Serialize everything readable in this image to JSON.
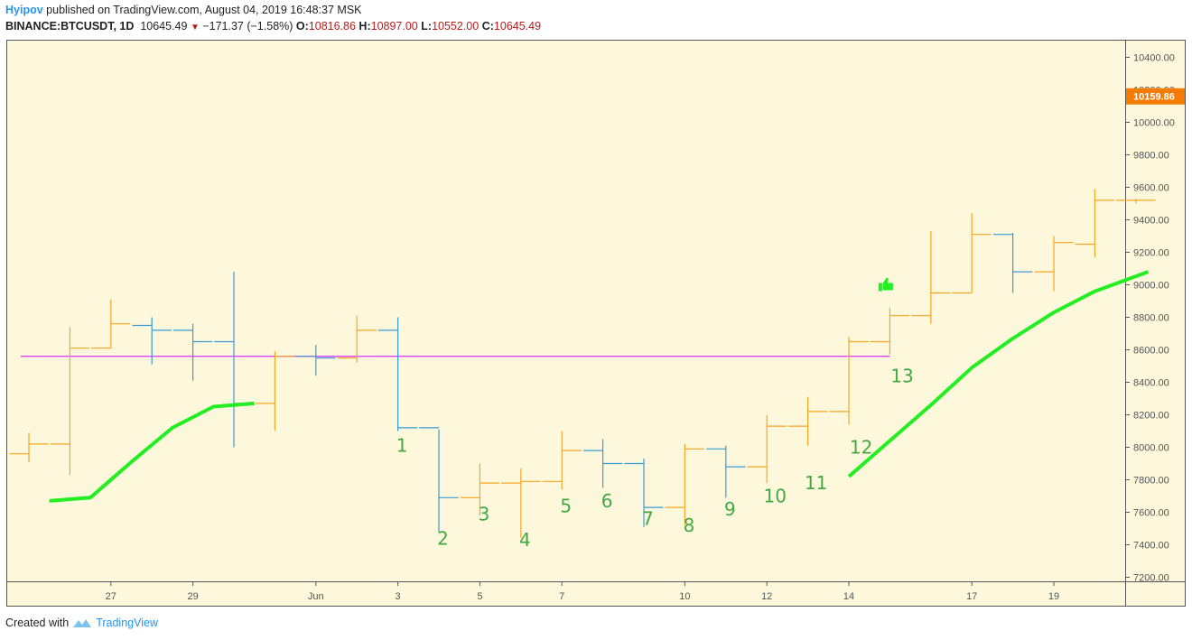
{
  "header": {
    "user": "Hyipov",
    "published": "published on TradingView.com, August 04, 2019 16:48:37 MSK",
    "symbol": "BINANCE:BTCUSDT, 1D",
    "last": "10645.49",
    "change": "−171.37 (−1.58%)",
    "open_label": "O:",
    "open": "10816.86",
    "high_label": "H:",
    "high": "10897.00",
    "low_label": "L:",
    "low": "10552.00",
    "close_label": "C:",
    "close": "10645.49"
  },
  "footer": {
    "created": "Created with",
    "brand": "TradingView"
  },
  "colors": {
    "background": "#fdf8dc",
    "up": "#f5a623",
    "down": "#3a9ad9",
    "ma": "#22ee22",
    "hline": "#e040fb",
    "labels": "#43a843",
    "price_tag": "#f57c00"
  },
  "chart_data": {
    "type": "ohlc",
    "ylim": [
      7200,
      10500
    ],
    "yticks": [
      7200,
      7400,
      7600,
      7800,
      8000,
      8200,
      8400,
      8600,
      8800,
      9000,
      9200,
      9400,
      9600,
      9800,
      10000,
      10200,
      10400
    ],
    "ytick_labels": [
      "7200.00",
      "7400.00",
      "7600.00",
      "7800.00",
      "8000.00",
      "8200.00",
      "8400.00",
      "8600.00",
      "8800.00",
      "9000.00",
      "9200.00",
      "9400.00",
      "9600.00",
      "9800.00",
      "10000.00",
      "10200.00",
      "10400.00"
    ],
    "current_price": "10159.86",
    "current_price_value": 10159.86,
    "xticks": [
      {
        "i": 2,
        "label": "27"
      },
      {
        "i": 4,
        "label": "29"
      },
      {
        "i": 7,
        "label": "Jun"
      },
      {
        "i": 9,
        "label": "3"
      },
      {
        "i": 11,
        "label": "5"
      },
      {
        "i": 13,
        "label": "7"
      },
      {
        "i": 16,
        "label": "10"
      },
      {
        "i": 18,
        "label": "12"
      },
      {
        "i": 20,
        "label": "14"
      },
      {
        "i": 23,
        "label": "17"
      },
      {
        "i": 25,
        "label": "19"
      }
    ],
    "bars": [
      {
        "o": 7960,
        "h": 8090,
        "l": 7910,
        "c": 8020
      },
      {
        "o": 8020,
        "h": 8740,
        "l": 7830,
        "c": 8610
      },
      {
        "o": 8610,
        "h": 8910,
        "l": 8610,
        "c": 8760
      },
      {
        "o": 8750,
        "h": 8800,
        "l": 8510,
        "c": 8720
      },
      {
        "o": 8720,
        "h": 8760,
        "l": 8410,
        "c": 8650
      },
      {
        "o": 8650,
        "h": 9080,
        "l": 8000,
        "c": 8270
      },
      {
        "o": 8270,
        "h": 8590,
        "l": 8100,
        "c": 8560
      },
      {
        "o": 8560,
        "h": 8630,
        "l": 8440,
        "c": 8550
      },
      {
        "o": 8550,
        "h": 8810,
        "l": 8520,
        "c": 8720
      },
      {
        "o": 8720,
        "h": 8800,
        "l": 8100,
        "c": 8120
      },
      {
        "o": 8120,
        "h": 8110,
        "l": 7480,
        "c": 7690
      },
      {
        "o": 7690,
        "h": 7900,
        "l": 7580,
        "c": 7780
      },
      {
        "o": 7780,
        "h": 7870,
        "l": 7440,
        "c": 7790
      },
      {
        "o": 7790,
        "h": 8100,
        "l": 7740,
        "c": 7980
      },
      {
        "o": 7980,
        "h": 8050,
        "l": 7750,
        "c": 7900
      },
      {
        "o": 7900,
        "h": 7930,
        "l": 7510,
        "c": 7630
      },
      {
        "o": 7630,
        "h": 8020,
        "l": 7520,
        "c": 7990
      },
      {
        "o": 7990,
        "h": 8010,
        "l": 7690,
        "c": 7880
      },
      {
        "o": 7880,
        "h": 8200,
        "l": 7780,
        "c": 8130
      },
      {
        "o": 8130,
        "h": 8310,
        "l": 8010,
        "c": 8220
      },
      {
        "o": 8220,
        "h": 8680,
        "l": 8140,
        "c": 8650
      },
      {
        "o": 8650,
        "h": 8860,
        "l": 8570,
        "c": 8810
      },
      {
        "o": 8810,
        "h": 9330,
        "l": 8760,
        "c": 8950
      },
      {
        "o": 8950,
        "h": 9440,
        "l": 8950,
        "c": 9310
      },
      {
        "o": 9310,
        "h": 9320,
        "l": 8950,
        "c": 9080
      },
      {
        "o": 9080,
        "h": 9300,
        "l": 8960,
        "c": 9260
      },
      {
        "o": 9250,
        "h": 9590,
        "l": 9170,
        "c": 9520
      },
      {
        "o": 9520,
        "h": 9530,
        "l": 9500,
        "c": 9520
      }
    ],
    "moving_average": {
      "segments": [
        [
          [
            0.5,
            7670
          ],
          [
            1.5,
            7690
          ],
          [
            2.5,
            7910
          ],
          [
            3.5,
            8120
          ],
          [
            4.5,
            8250
          ],
          [
            5.5,
            8270
          ]
        ],
        [
          [
            20,
            7820
          ],
          [
            21,
            8040
          ],
          [
            22,
            8260
          ],
          [
            23,
            8490
          ],
          [
            24,
            8670
          ],
          [
            25,
            8830
          ],
          [
            26,
            8960
          ],
          [
            27.3,
            9080
          ]
        ]
      ]
    },
    "horizontal_line": {
      "value": 8560,
      "from_i": -0.2,
      "to_i": 21
    },
    "count_labels": [
      {
        "text": "1",
        "i": 9.1,
        "v": 8010
      },
      {
        "text": "2",
        "i": 10.1,
        "v": 7440
      },
      {
        "text": "3",
        "i": 11.1,
        "v": 7590
      },
      {
        "text": "4",
        "i": 12.1,
        "v": 7430
      },
      {
        "text": "5",
        "i": 13.1,
        "v": 7640
      },
      {
        "text": "6",
        "i": 14.1,
        "v": 7670
      },
      {
        "text": "7",
        "i": 15.1,
        "v": 7560
      },
      {
        "text": "8",
        "i": 16.1,
        "v": 7520
      },
      {
        "text": "9",
        "i": 17.1,
        "v": 7620
      },
      {
        "text": "10",
        "i": 18.2,
        "v": 7700
      },
      {
        "text": "11",
        "i": 19.2,
        "v": 7780
      },
      {
        "text": "12",
        "i": 20.3,
        "v": 8000
      },
      {
        "text": "13",
        "i": 21.3,
        "v": 8440
      }
    ],
    "thumb_icon": {
      "name": "thumbs-up-icon",
      "i": 20.9,
      "v": 9000
    }
  }
}
